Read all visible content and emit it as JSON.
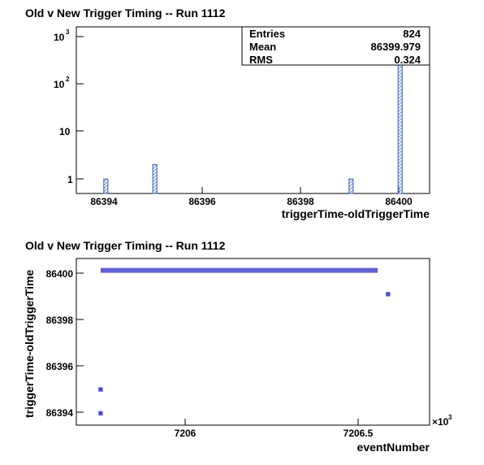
{
  "chart_data": [
    {
      "type": "bar",
      "title": "Old v New Trigger Timing -- Run 1112",
      "xlabel": "triggerTime-oldTriggerTime",
      "ylabel": "",
      "log_y": true,
      "xlim": [
        86393.4,
        86400.6
      ],
      "ylim": [
        0.5,
        1500
      ],
      "x_ticks": [
        "86394",
        "86396",
        "86398",
        "86400"
      ],
      "y_ticks": [
        {
          "base": "10",
          "exp": "3"
        },
        {
          "base": "10",
          "exp": "2"
        },
        {
          "base": "10",
          "exp": ""
        },
        {
          "base": "1",
          "exp": ""
        }
      ],
      "bins": [
        {
          "x": 86394,
          "value": 1
        },
        {
          "x": 86395,
          "value": 2
        },
        {
          "x": 86399,
          "value": 1
        },
        {
          "x": 86400,
          "value": 820
        }
      ],
      "stats": [
        {
          "name": "Entries",
          "value": "824"
        },
        {
          "name": "Mean",
          "value": "86399.979"
        },
        {
          "name": "RMS",
          "value": "0.324"
        }
      ],
      "colors": {
        "fill_hatch": "#6f93d4",
        "edge": "#4a72c0"
      }
    },
    {
      "type": "scatter",
      "title": "Old v New Trigger Timing -- Run 1112",
      "xlabel": "eventNumber",
      "ylabel": "triggerTime-oldTriggerTime",
      "x_multiplier": "×10",
      "x_multiplier_exp": "3",
      "xlim": [
        7205.73,
        7206.75
      ],
      "ylim": [
        86393.5,
        86400.5
      ],
      "x_ticks": [
        "7206",
        "7206.5"
      ],
      "y_ticks": [
        "86394",
        "86396",
        "86398",
        "86400"
      ],
      "points": [
        {
          "x": 7205.8,
          "y": 86394
        },
        {
          "x": 7205.8,
          "y": 86395
        },
        {
          "x": 7206.63,
          "y": 86399
        }
      ],
      "band": {
        "y": 86400,
        "x_from": 7205.8,
        "x_to": 7206.6
      },
      "colors": {
        "marker": "#4444cc"
      }
    }
  ]
}
